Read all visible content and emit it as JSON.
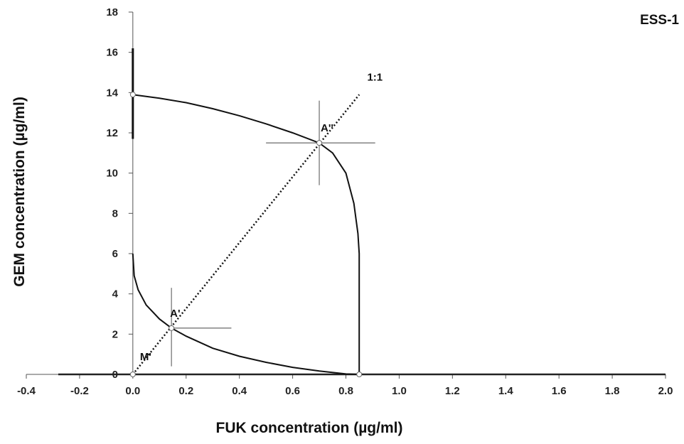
{
  "chart_data": {
    "type": "line",
    "title": "ESS-1",
    "xlabel": "FUK concentration (µg/ml)",
    "ylabel": "GEM concentration (µg/ml)",
    "xlim": [
      -0.4,
      2.0
    ],
    "ylim": [
      0,
      18
    ],
    "x_ticks": [
      -0.4,
      -0.2,
      0.0,
      0.2,
      0.4,
      0.6,
      0.8,
      1.0,
      1.2,
      1.4,
      1.6,
      1.8,
      2.0
    ],
    "x_tick_labels": [
      "-0.4",
      "-0.2",
      "0.0",
      "0.2",
      "0.4",
      "0.6",
      "0.8",
      "1.0",
      "1.2",
      "1.4",
      "1.6",
      "1.8",
      "2.0"
    ],
    "y_ticks": [
      0,
      2,
      4,
      6,
      8,
      10,
      12,
      14,
      16,
      18
    ],
    "y_tick_labels": [
      "0",
      "2",
      "4",
      "6",
      "8",
      "10",
      "12",
      "14",
      "16",
      "18"
    ],
    "grid": false,
    "legend": "none",
    "series": [
      {
        "style": "solid",
        "points": [
          [
            0.0,
            6.0
          ],
          [
            0.005,
            4.9
          ],
          [
            0.02,
            4.2
          ],
          [
            0.05,
            3.45
          ],
          [
            0.1,
            2.75
          ],
          [
            0.145,
            2.3
          ],
          [
            0.2,
            1.9
          ],
          [
            0.3,
            1.3
          ],
          [
            0.4,
            0.9
          ],
          [
            0.5,
            0.6
          ],
          [
            0.6,
            0.35
          ],
          [
            0.7,
            0.17
          ],
          [
            0.8,
            0.02
          ],
          [
            0.85,
            0.0
          ]
        ]
      },
      {
        "style": "solid",
        "points": [
          [
            0.0,
            13.9
          ],
          [
            0.1,
            13.72
          ],
          [
            0.2,
            13.5
          ],
          [
            0.3,
            13.2
          ],
          [
            0.4,
            12.85
          ],
          [
            0.5,
            12.45
          ],
          [
            0.6,
            12.0
          ],
          [
            0.7,
            11.5
          ],
          [
            0.75,
            11.0
          ],
          [
            0.8,
            10.0
          ],
          [
            0.83,
            8.5
          ],
          [
            0.845,
            7.0
          ],
          [
            0.85,
            6.0
          ],
          [
            0.85,
            0.0
          ]
        ]
      },
      {
        "style": "dotted",
        "points": [
          [
            0.0,
            0.0
          ],
          [
            0.85,
            13.9
          ]
        ]
      }
    ],
    "points": [
      {
        "label": "A'",
        "x": 0.145,
        "y": 2.3,
        "x_err": [
          0.15,
          0.37
        ],
        "y_err": [
          0.4,
          4.3
        ]
      },
      {
        "label": "A''",
        "x": 0.7,
        "y": 11.5,
        "x_err": [
          0.5,
          0.91
        ],
        "y_err": [
          9.4,
          13.6
        ]
      },
      {
        "label": "M'",
        "x": 0.0,
        "y": 0.0
      }
    ],
    "annotations": {
      "ratio_label": "1:1",
      "ratio_label_at": [
        0.88,
        14.6
      ]
    },
    "markers": [
      [
        0.0,
        13.9
      ],
      [
        0.0,
        0.0
      ],
      [
        0.85,
        0.0
      ]
    ],
    "vertical_error_at_zero": [
      11.7,
      16.2
    ]
  }
}
